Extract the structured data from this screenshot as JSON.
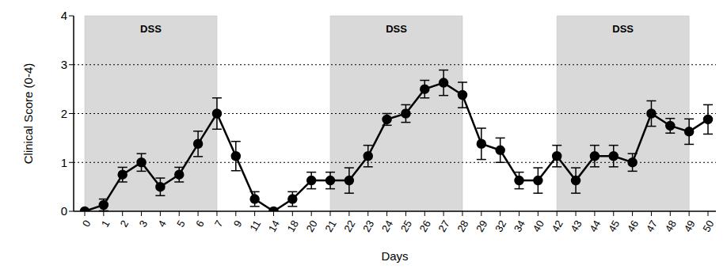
{
  "chart_data": {
    "type": "line",
    "xlabel": "Days",
    "ylabel": "Clinical Score (0-4)",
    "categories": [
      "0",
      "1",
      "2",
      "3",
      "4",
      "5",
      "6",
      "7",
      "9",
      "11",
      "14",
      "18",
      "20",
      "21",
      "22",
      "23",
      "24",
      "25",
      "26",
      "27",
      "28",
      "29",
      "32",
      "34",
      "40",
      "42",
      "43",
      "44",
      "45",
      "46",
      "47",
      "48",
      "49",
      "50"
    ],
    "values": [
      0,
      0.13,
      0.75,
      1.0,
      0.5,
      0.75,
      1.38,
      2.0,
      1.13,
      0.25,
      0,
      0.25,
      0.63,
      0.63,
      0.63,
      1.13,
      1.88,
      2.0,
      2.5,
      2.63,
      2.38,
      1.38,
      1.25,
      0.63,
      0.63,
      1.13,
      0.63,
      1.13,
      1.13,
      1.0,
      2.0,
      1.75,
      1.63,
      1.88
    ],
    "errors": [
      0,
      0.12,
      0.15,
      0.18,
      0.18,
      0.15,
      0.26,
      0.32,
      0.3,
      0.15,
      0,
      0.15,
      0.17,
      0.17,
      0.26,
      0.22,
      0.12,
      0.18,
      0.18,
      0.26,
      0.26,
      0.32,
      0.25,
      0.17,
      0.26,
      0.22,
      0.26,
      0.22,
      0.22,
      0.18,
      0.26,
      0.15,
      0.26,
      0.3
    ],
    "color": "#000000",
    "marker": "circle",
    "ylim": [
      0,
      4
    ],
    "yticks": [
      0,
      1,
      2,
      3,
      4
    ],
    "grid": true,
    "annotations": [
      {
        "x_start": "0",
        "x_end": "7",
        "text": "DSS"
      },
      {
        "x_start": "21",
        "x_end": "28",
        "text": "DSS"
      },
      {
        "x_start": "42",
        "x_end": "49",
        "text": "DSS"
      }
    ]
  }
}
